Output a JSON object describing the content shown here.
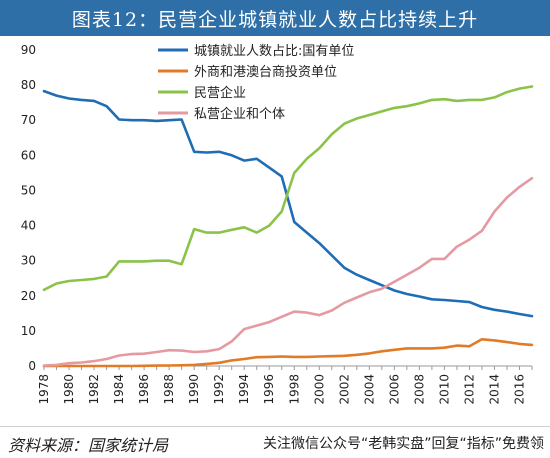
{
  "title": "图表12：民营企业城镇就业人数占比持续上升",
  "source": "资料来源：国家统计局",
  "watermark": "关注微信公众号“老韩实盘”回复“指标”免费领",
  "chart_data": {
    "type": "line",
    "xlim": [
      1978,
      2017
    ],
    "ylim": [
      0,
      90
    ],
    "yticks": [
      0,
      10,
      20,
      30,
      40,
      50,
      60,
      70,
      80,
      90
    ],
    "xticks": [
      "1978",
      "1980",
      "1982",
      "1984",
      "1986",
      "1988",
      "1990",
      "1992",
      "1994",
      "1996",
      "1998",
      "2000",
      "2002",
      "2004",
      "2006",
      "2008",
      "2010",
      "2012",
      "2014",
      "2016"
    ],
    "legend_position": "top-center",
    "series": [
      {
        "name": "城镇就业人数占比:国有单位",
        "color": "#1f6db5",
        "x": [
          1978,
          1979,
          1980,
          1981,
          1982,
          1983,
          1984,
          1985,
          1986,
          1987,
          1988,
          1989,
          1990,
          1991,
          1992,
          1993,
          1994,
          1995,
          1996,
          1997,
          1998,
          1999,
          2000,
          2001,
          2002,
          2003,
          2004,
          2005,
          2006,
          2007,
          2008,
          2009,
          2010,
          2011,
          2012,
          2013,
          2014,
          2015,
          2016,
          2017
        ],
        "values": [
          78.3,
          77,
          76.2,
          75.8,
          75.5,
          74,
          70.2,
          70,
          70,
          69.8,
          70,
          70.2,
          61,
          60.8,
          61,
          60,
          58.5,
          59,
          56.5,
          54,
          41,
          38,
          35,
          31.5,
          28,
          26,
          24.5,
          23,
          21.5,
          20.5,
          19.8,
          19,
          18.8,
          18.5,
          18.2,
          16.8,
          16,
          15.5,
          14.8,
          14.2
        ]
      },
      {
        "name": "外商和港澳台商投资单位",
        "color": "#e07b28",
        "x": [
          1978,
          1979,
          1980,
          1981,
          1982,
          1983,
          1984,
          1985,
          1986,
          1987,
          1988,
          1989,
          1990,
          1991,
          1992,
          1993,
          1994,
          1995,
          1996,
          1997,
          1998,
          1999,
          2000,
          2001,
          2002,
          2003,
          2004,
          2005,
          2006,
          2007,
          2008,
          2009,
          2010,
          2011,
          2012,
          2013,
          2014,
          2015,
          2016,
          2017
        ],
        "values": [
          0,
          0,
          0,
          0,
          0,
          0,
          0,
          0,
          0.05,
          0.1,
          0.15,
          0.2,
          0.3,
          0.6,
          0.9,
          1.6,
          2,
          2.5,
          2.6,
          2.7,
          2.6,
          2.6,
          2.7,
          2.8,
          2.9,
          3.2,
          3.6,
          4.2,
          4.6,
          5,
          5,
          5,
          5.2,
          5.8,
          5.6,
          7.6,
          7.3,
          6.8,
          6.3,
          6
        ]
      },
      {
        "name": "民营企业",
        "color": "#8bc34a",
        "x": [
          1978,
          1979,
          1980,
          1981,
          1982,
          1983,
          1984,
          1985,
          1986,
          1987,
          1988,
          1989,
          1990,
          1991,
          1992,
          1993,
          1994,
          1995,
          1996,
          1997,
          1998,
          1999,
          2000,
          2001,
          2002,
          2003,
          2004,
          2005,
          2006,
          2007,
          2008,
          2009,
          2010,
          2011,
          2012,
          2013,
          2014,
          2015,
          2016,
          2017
        ],
        "values": [
          21.7,
          23.5,
          24.2,
          24.5,
          24.8,
          25.5,
          29.8,
          29.8,
          29.8,
          30,
          30,
          29,
          39,
          38,
          38,
          38.8,
          39.5,
          38,
          40,
          44,
          55,
          59,
          62,
          66,
          69,
          70.5,
          71.5,
          72.5,
          73.5,
          74,
          74.8,
          75.8,
          76,
          75.5,
          75.8,
          75.8,
          76.5,
          78,
          79,
          79.6
        ]
      },
      {
        "name": "私营企业和个体",
        "color": "#e59aa2",
        "x": [
          1978,
          1979,
          1980,
          1981,
          1982,
          1983,
          1984,
          1985,
          1986,
          1987,
          1988,
          1989,
          1990,
          1991,
          1992,
          1993,
          1994,
          1995,
          1996,
          1997,
          1998,
          1999,
          2000,
          2001,
          2002,
          2003,
          2004,
          2005,
          2006,
          2007,
          2008,
          2009,
          2010,
          2011,
          2012,
          2013,
          2014,
          2015,
          2016,
          2017
        ],
        "values": [
          0.1,
          0.3,
          0.8,
          1,
          1.4,
          2,
          3,
          3.4,
          3.5,
          4,
          4.5,
          4.4,
          4,
          4.2,
          4.8,
          7,
          10.5,
          11.5,
          12.5,
          14,
          15.5,
          15.2,
          14.5,
          15.8,
          18,
          19.5,
          21,
          22,
          24,
          26,
          28,
          30.5,
          30.5,
          34,
          36,
          38.5,
          44,
          48,
          51,
          53.5
        ]
      }
    ]
  }
}
